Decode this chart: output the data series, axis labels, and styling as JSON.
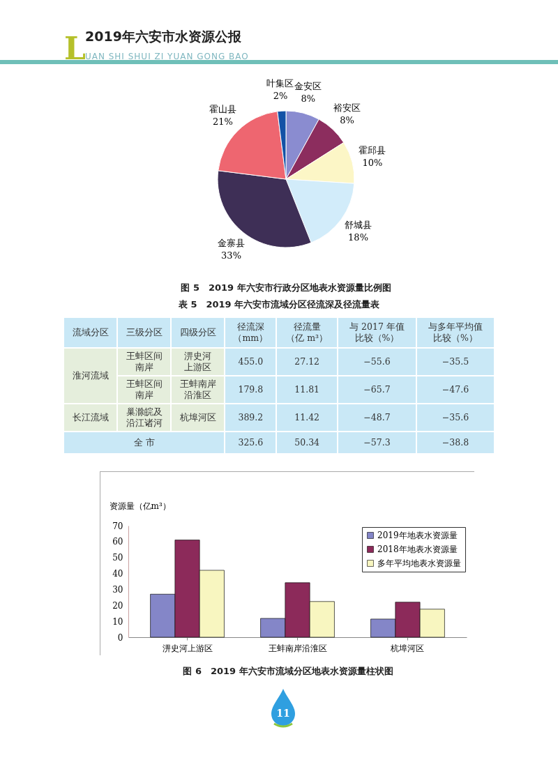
{
  "chart_data": [
    {
      "type": "pie",
      "title": "图 5　2019 年六安市行政分区地表水资源量比例图",
      "annotations": [
        "2019年六安市水资源公报",
        "LUAN SHI SHUI ZI YUAN GONG BAO"
      ],
      "categories": [
        "金安区",
        "裕安区",
        "霍邱县",
        "舒城县",
        "金寨县",
        "霍山县",
        "叶集区"
      ],
      "values": [
        8,
        8,
        10,
        18,
        33,
        21,
        2
      ],
      "value_labels": [
        "8%",
        "8%",
        "10%",
        "18%",
        "33%",
        "21%",
        "2%"
      ],
      "colors": [
        "#8a8cd0",
        "#8c2d5e",
        "#fcf6c6",
        "#d2ecfa",
        "#3e2f56",
        "#ee6670",
        "#1452a6"
      ]
    },
    {
      "type": "other",
      "title": "表 5　2019 年六安市流域分区径流深及径流量表",
      "annotations": [
        "流域分区",
        "三级分区",
        "四级分区",
        "径流深（mm）",
        "径流量（亿 m³）",
        "与 2017 年值比较（%）",
        "与多年平均值比较（%）",
        "淮河流域",
        "王蚌区间南岸",
        "淠史河上游区",
        "455.0",
        "27.12",
        "−55.6",
        "−35.5",
        "王蚌区间南岸",
        "王蚌南岸沿淮区",
        "179.8",
        "11.81",
        "−65.7",
        "−47.6",
        "长江流域",
        "巢滁皖及沿江诸河",
        "杭埠河区",
        "389.2",
        "11.42",
        "−48.7",
        "−35.6",
        "全 市",
        "325.6",
        "50.34",
        "−57.3",
        "−38.8"
      ]
    },
    {
      "type": "bar",
      "title": "图 6　2019 年六安市流域分区地表水资源量柱状图",
      "ylabel": "资源量（亿m³）",
      "annotations": [
        "11"
      ],
      "categories": [
        "淠史河上游区",
        "王蚌南岸沿淮区",
        "杭埠河区"
      ],
      "series": [
        {
          "name": "2019年地表水资源量",
          "color": "#8486c8",
          "values": [
            27,
            11.8,
            11.4
          ]
        },
        {
          "name": "2018年地表水资源量",
          "color": "#8c2a5a",
          "values": [
            61,
            34.2,
            22
          ]
        },
        {
          "name": "多年平均地表水资源量",
          "color": "#f8f6c0",
          "values": [
            42,
            22.4,
            17.6
          ]
        }
      ],
      "ylim": [
        0,
        70
      ],
      "yticks": [
        0,
        10,
        20,
        30,
        40,
        50,
        60,
        70
      ],
      "grid": false,
      "legend": "top right"
    }
  ]
}
